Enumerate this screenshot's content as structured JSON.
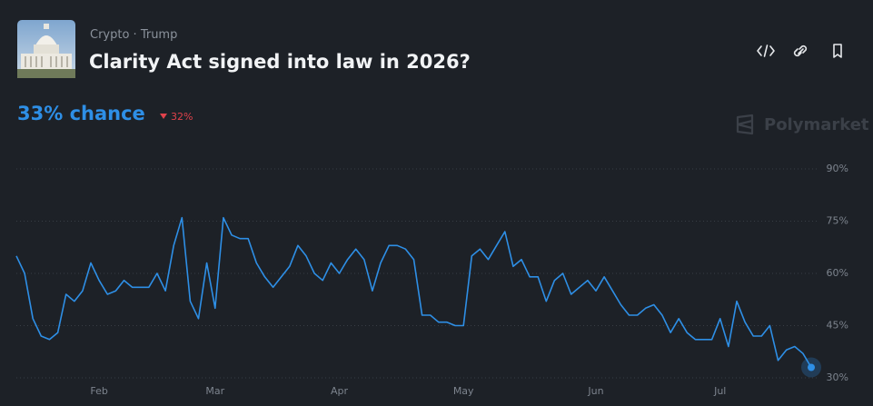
{
  "header": {
    "breadcrumb": "Crypto · Trump",
    "title": "Clarity Act signed into law in 2026?",
    "chance": "33% chance",
    "change": "32%",
    "brand": "Polymarket"
  },
  "chart_data": {
    "type": "line",
    "color": "#2e8fe6",
    "categories": [
      null,
      null,
      null,
      null,
      null,
      null,
      null,
      null,
      null,
      null,
      "Feb",
      null,
      null,
      null,
      null,
      null,
      null,
      null,
      null,
      null,
      null,
      null,
      null,
      null,
      "Mar",
      null,
      null,
      null,
      null,
      null,
      null,
      null,
      null,
      null,
      null,
      null,
      null,
      null,
      null,
      "Apr",
      null,
      null,
      null,
      null,
      null,
      null,
      null,
      null,
      null,
      null,
      null,
      null,
      null,
      null,
      "May",
      null,
      null,
      null,
      null,
      null,
      null,
      null,
      null,
      null,
      null,
      null,
      null,
      null,
      null,
      null,
      "Jun",
      null,
      null,
      null,
      null,
      null,
      null,
      null,
      null,
      null,
      null,
      null,
      null,
      null,
      null,
      "Jul",
      null,
      null,
      null,
      null,
      null,
      null,
      null,
      null,
      null,
      null,
      null
    ],
    "values": [
      65,
      60,
      47,
      42,
      41,
      43,
      54,
      52,
      55,
      63,
      58,
      54,
      55,
      58,
      56,
      56,
      56,
      60,
      55,
      68,
      76,
      52,
      47,
      63,
      50,
      76,
      71,
      70,
      70,
      63,
      59,
      56,
      59,
      62,
      68,
      65,
      60,
      58,
      63,
      60,
      64,
      67,
      64,
      55,
      63,
      68,
      68,
      67,
      64,
      48,
      48,
      46,
      46,
      45,
      45,
      65,
      67,
      64,
      68,
      72,
      62,
      64,
      59,
      59,
      52,
      58,
      60,
      54,
      56,
      58,
      55,
      59,
      55,
      51,
      48,
      48,
      50,
      51,
      48,
      43,
      47,
      43,
      41,
      41,
      41,
      47,
      39,
      52,
      46,
      42,
      42,
      45,
      35,
      38,
      39,
      37,
      33
    ],
    "ylim": [
      30,
      90
    ],
    "yticks": [
      {
        "value": 30,
        "label": "30%"
      },
      {
        "value": 45,
        "label": "45%"
      },
      {
        "value": 60,
        "label": "60%"
      },
      {
        "value": 75,
        "label": "75%"
      },
      {
        "value": 90,
        "label": "90%"
      }
    ],
    "grid": true
  }
}
